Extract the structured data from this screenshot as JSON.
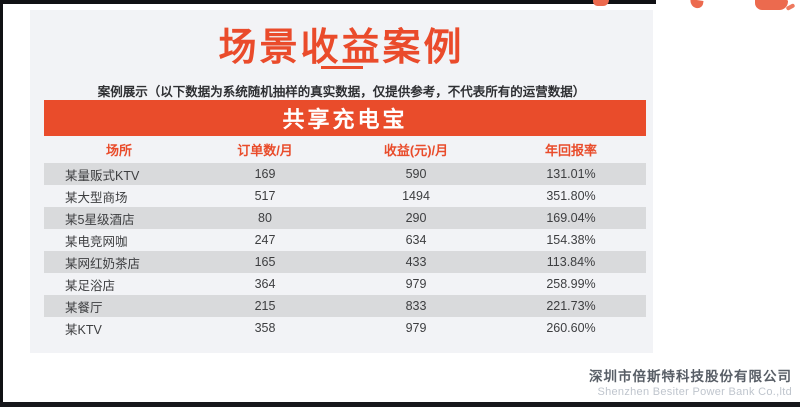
{
  "page": {
    "title": "场景收益案例",
    "subtitle": "案例展示（以下数据为系统随机抽样的真实数据，仅提供参考，不代表所有的运营数据）"
  },
  "banner": {
    "label": "共享充电宝"
  },
  "table": {
    "headers": [
      "场所",
      "订单数/月",
      "收益(元)/月",
      "年回报率"
    ],
    "rows": [
      [
        "某量贩式KTV",
        "169",
        "590",
        "131.01%"
      ],
      [
        "某大型商场",
        "517",
        "1494",
        "351.80%"
      ],
      [
        "某5星级酒店",
        "80",
        "290",
        "169.04%"
      ],
      [
        "某电竞网咖",
        "247",
        "634",
        "154.38%"
      ],
      [
        "某网红奶茶店",
        "165",
        "433",
        "113.84%"
      ],
      [
        "某足浴店",
        "364",
        "979",
        "258.99%"
      ],
      [
        "某餐厅",
        "215",
        "833",
        "221.73%"
      ],
      [
        "某KTV",
        "358",
        "979",
        "260.60%"
      ]
    ]
  },
  "footer": {
    "company_cn": "深圳市倍斯特科技股份有限公司",
    "company_en": "Shenzhen Besiter Power Bank Co.,ltd"
  },
  "colors": {
    "accent": "#e94c2b",
    "panel_bg": "#f2f3f6",
    "row_stripe": "#d9dadc"
  }
}
